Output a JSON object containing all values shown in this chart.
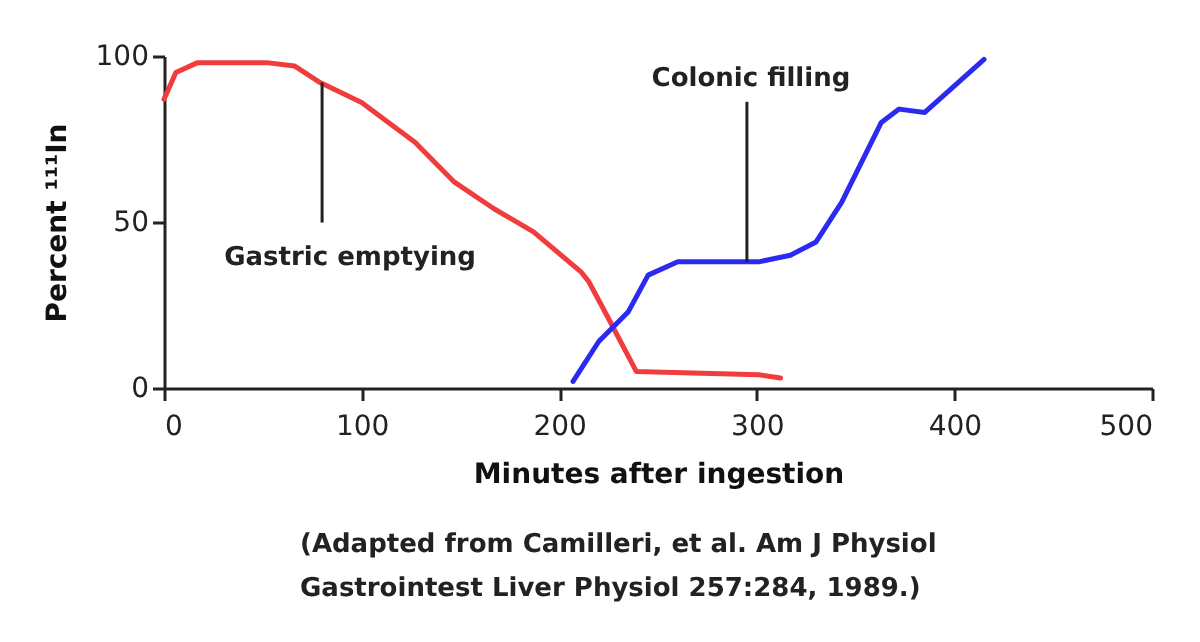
{
  "chart_data": {
    "type": "line",
    "xlabel": "Minutes after ingestion",
    "ylabel": "Percent ¹¹¹In",
    "xlim": [
      0,
      500
    ],
    "xticks": [
      0,
      100,
      200,
      300,
      400,
      500
    ],
    "ylim": [
      0,
      100
    ],
    "yticks": [
      0,
      50,
      100
    ],
    "grid": false,
    "legend": false,
    "marker": "none",
    "line_style": "solid",
    "series": [
      {
        "color": "#f03c3c",
        "x": [
          0,
          6,
          17,
          52,
          66,
          79,
          100,
          127,
          147,
          167,
          187,
          211,
          215,
          224,
          239,
          301,
          312
        ],
        "values": [
          87,
          95,
          98,
          98,
          97,
          92,
          86,
          74,
          62,
          54,
          47,
          35,
          32,
          22,
          5,
          4,
          3
        ]
      },
      {
        "color": "#2a2af0",
        "x": [
          207,
          220,
          235,
          245,
          260,
          301,
          317,
          330,
          343,
          363,
          372,
          385,
          415
        ],
        "values": [
          2,
          14,
          23,
          34,
          38,
          38,
          40,
          44,
          56,
          80,
          84,
          83,
          99
        ]
      }
    ],
    "annotations": [
      {
        "text": "Gastric emptying",
        "x": 80,
        "y": 92
      },
      {
        "text": "Colonic filling",
        "x": 295,
        "y": 38
      },
      "(Adapted from Camilleri, et al. Am J Physiol Gastrointest Liver Physiol 257:284, 1989.)"
    ]
  }
}
